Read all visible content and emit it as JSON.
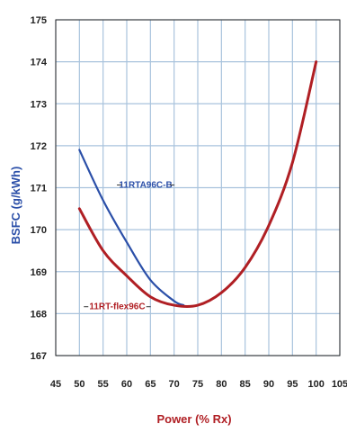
{
  "chart_data": {
    "type": "line",
    "xlabel": "Power (% Rx)",
    "ylabel": "BSFC (g/kWh)",
    "xlim": [
      45,
      105
    ],
    "ylim": [
      167,
      175
    ],
    "xticks": [
      45,
      50,
      55,
      60,
      65,
      70,
      75,
      80,
      85,
      90,
      95,
      100,
      105
    ],
    "yticks": [
      167,
      168,
      169,
      170,
      171,
      172,
      173,
      174,
      175
    ],
    "grid": true,
    "legend": "none",
    "series": [
      {
        "name": "11RTA96C-B",
        "color": "#2b4fa8",
        "x": [
          50,
          55,
          60,
          65,
          70,
          72
        ],
        "y": [
          171.9,
          170.7,
          169.7,
          168.8,
          168.3,
          168.2
        ]
      },
      {
        "name": "11RT-flex96C",
        "color": "#b01f24",
        "x": [
          50,
          55,
          60,
          65,
          70,
          75,
          80,
          85,
          90,
          95,
          100
        ],
        "y": [
          170.5,
          169.5,
          168.9,
          168.4,
          168.2,
          168.2,
          168.5,
          169.1,
          170.1,
          171.6,
          174.0
        ]
      }
    ],
    "annotations": [
      {
        "text": "11RTA96C-B",
        "x": 64,
        "y": 171
      },
      {
        "text": "11RT-flex96C",
        "x": 58,
        "y": 168.1
      }
    ]
  },
  "colors": {
    "grid": "#a9c3dd",
    "axis": "#222222",
    "ylabel": "#2b4fa8",
    "xlabel": "#b01f24"
  }
}
